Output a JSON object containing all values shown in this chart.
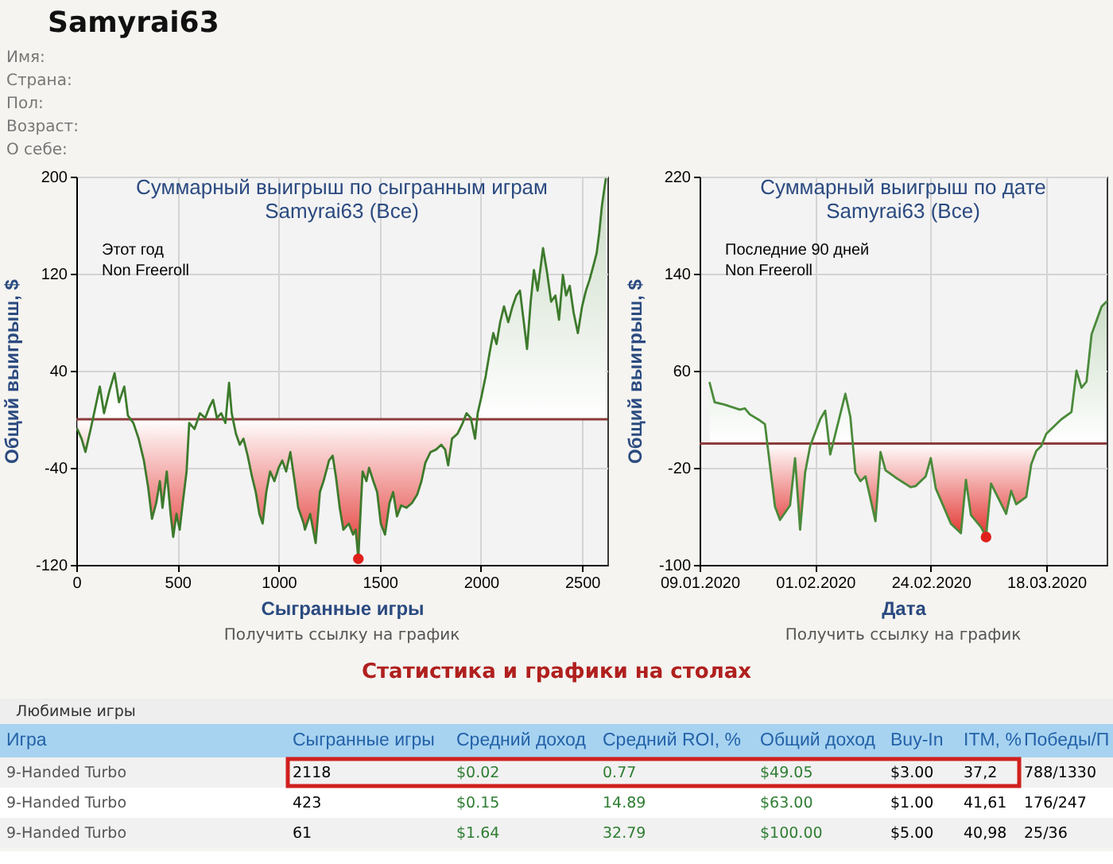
{
  "chart_data": [
    {
      "type": "other",
      "title": "Samyrai63",
      "annotations": [
        "Имя:",
        "Страна:",
        "Пол:",
        "Возраст:",
        "О себе:"
      ]
    },
    {
      "type": "area",
      "title": "Суммарный выигрыш по сыгранным играм",
      "subtitle": "Samyrai63 (Все)",
      "xlabel": "Сыгранные игры",
      "ylabel": "Общий выигрыш, $",
      "annotations": [
        "Этот год",
        "Non Freeroll",
        "Получить ссылку на график"
      ],
      "xlim": [
        0,
        2625
      ],
      "xticks": [
        0,
        500,
        1000,
        1500,
        2000,
        2500
      ],
      "ylim": [
        -120,
        200
      ],
      "yticks": [
        -120,
        -40,
        40,
        120,
        200
      ],
      "grid": true,
      "ref_lines": [
        {
          "axis": "y",
          "value": 0,
          "color": "#8c3b3b"
        }
      ],
      "series": [
        {
          "type": "area",
          "color": "#3d7a2c",
          "x": [
            5,
            26,
            45,
            71,
            97,
            116,
            137,
            163,
            189,
            211,
            237,
            255,
            282,
            308,
            334,
            355,
            374,
            395,
            413,
            426,
            447,
            466,
            479,
            495,
            511,
            526,
            545,
            558,
            584,
            611,
            637,
            658,
            676,
            695,
            716,
            737,
            755,
            768,
            789,
            808,
            826,
            847,
            868,
            887,
            905,
            921,
            939,
            958,
            979,
            1000,
            1018,
            1037,
            1058,
            1079,
            1097,
            1124,
            1130,
            1156,
            1183,
            1204,
            1222,
            1249,
            1267,
            1283,
            1302,
            1320,
            1347,
            1368,
            1381,
            1394,
            1407,
            1415,
            1434,
            1447,
            1468,
            1487,
            1505,
            1526,
            1548,
            1566,
            1585,
            1606,
            1632,
            1659,
            1685,
            1706,
            1725,
            1751,
            1778,
            1804,
            1823,
            1838,
            1857,
            1884,
            1910,
            1929,
            1950,
            1971,
            1984,
            2003,
            2024,
            2042,
            2061,
            2077,
            2095,
            2114,
            2135,
            2156,
            2175,
            2193,
            2209,
            2228,
            2246,
            2262,
            2280,
            2307,
            2325,
            2347,
            2368,
            2386,
            2405,
            2421,
            2439,
            2458,
            2479,
            2500,
            2519,
            2537,
            2558,
            2572,
            2585,
            2598,
            2617
          ],
          "values": [
            -8,
            -16,
            -27,
            -8,
            12,
            27,
            5,
            23,
            38,
            14,
            27,
            3,
            -3,
            -16,
            -34,
            -56,
            -82,
            -69,
            -51,
            -73,
            -43,
            -78,
            -97,
            -78,
            -91,
            -69,
            -43,
            -3,
            -8,
            5,
            1,
            10,
            16,
            1,
            5,
            -3,
            30,
            5,
            -12,
            -21,
            -16,
            -30,
            -47,
            -60,
            -78,
            -86,
            -60,
            -43,
            -51,
            -40,
            -34,
            -43,
            -27,
            -51,
            -73,
            -86,
            -91,
            -78,
            -102,
            -60,
            -51,
            -34,
            -30,
            -47,
            -73,
            -91,
            -86,
            -95,
            -91,
            -115,
            -69,
            -43,
            -51,
            -40,
            -51,
            -60,
            -86,
            -95,
            -69,
            -60,
            -80,
            -71,
            -73,
            -69,
            -62,
            -51,
            -36,
            -27,
            -25,
            -21,
            -25,
            -38,
            -16,
            -12,
            -3,
            5,
            1,
            -16,
            5,
            19,
            36,
            54,
            71,
            62,
            80,
            93,
            80,
            93,
            102,
            106,
            84,
            58,
            97,
            123,
            106,
            141,
            123,
            97,
            102,
            82,
            119,
            102,
            110,
            88,
            71,
            93,
            106,
            115,
            128,
            137,
            154,
            176,
            198
          ]
        },
        {
          "type": "scatter",
          "color": "#e0201c",
          "x": [
            1394
          ],
          "values": [
            -115
          ]
        }
      ]
    },
    {
      "type": "area",
      "title": "Суммарный выигрыш по дате",
      "subtitle": "Samyrai63 (Все)",
      "xlabel": "Дата",
      "ylabel": "Общий выигрыш, $",
      "annotations": [
        "Последние 90 дней",
        "Non Freeroll",
        "Получить ссылку на график"
      ],
      "xlim": [
        "2020-01-09",
        "2020-03-30"
      ],
      "xticks": [
        {
          "value": "2020-01-09",
          "label": "09.01.2020"
        },
        {
          "value": "2020-02-01",
          "label": "01.02.2020"
        },
        {
          "value": "2020-02-24",
          "label": "24.02.2020"
        },
        {
          "value": "2020-03-18",
          "label": "18.03.2020"
        }
      ],
      "ylim": [
        -100,
        220
      ],
      "yticks": [
        -100,
        -20,
        60,
        140,
        220
      ],
      "grid": true,
      "ref_lines": [
        {
          "axis": "y",
          "value": 0,
          "color": "#8c3b3b"
        }
      ],
      "series": [
        {
          "type": "area",
          "color": "#4a8a3a",
          "x": [
            "2020-01-11",
            "2020-01-12",
            "2020-01-14",
            "2020-01-17",
            "2020-01-18",
            "2020-01-19",
            "2020-01-21",
            "2020-01-22",
            "2020-01-24",
            "2020-01-25",
            "2020-01-27",
            "2020-01-28",
            "2020-01-29",
            "2020-01-30",
            "2020-01-31",
            "2020-02-02",
            "2020-02-03",
            "2020-02-04",
            "2020-02-07",
            "2020-02-08",
            "2020-02-09",
            "2020-02-10",
            "2020-02-11",
            "2020-02-13",
            "2020-02-14",
            "2020-02-15",
            "2020-02-17",
            "2020-02-20",
            "2020-02-21",
            "2020-02-23",
            "2020-02-24",
            "2020-02-25",
            "2020-02-28",
            "2020-03-01",
            "2020-03-02",
            "2020-03-03",
            "2020-03-05",
            "2020-03-06",
            "2020-03-07",
            "2020-03-10",
            "2020-03-11",
            "2020-03-12",
            "2020-03-14",
            "2020-03-15",
            "2020-03-16",
            "2020-03-17",
            "2020-03-18",
            "2020-03-20",
            "2020-03-21",
            "2020-03-23",
            "2020-03-24",
            "2020-03-25",
            "2020-03-26",
            "2020-03-27",
            "2020-03-29",
            "2020-03-30"
          ],
          "values": [
            50,
            34,
            32,
            28,
            29,
            24,
            19,
            16,
            -52,
            -63,
            -51,
            -12,
            -71,
            -24,
            -2,
            20,
            27,
            -9,
            41,
            22,
            -24,
            -31,
            -27,
            -64,
            -7,
            -22,
            -28,
            -36,
            -35,
            -27,
            -12,
            -37,
            -66,
            -74,
            -30,
            -59,
            -69,
            -77,
            -33,
            -58,
            -39,
            -50,
            -44,
            -17,
            -6,
            -2,
            8,
            16,
            20,
            26,
            60,
            46,
            51,
            90,
            113,
            117
          ]
        },
        {
          "type": "scatter",
          "color": "#e0201c",
          "x": [
            "2020-03-06"
          ],
          "values": [
            -77
          ]
        }
      ]
    },
    {
      "type": "other",
      "annotations": [
        "Статистика и графики на столах"
      ]
    },
    {
      "type": "other",
      "title": "Любимые игры",
      "categories": [
        "Игра",
        "Сыгранные игры",
        "Средний доход",
        "Средний ROI, %",
        "Общий доход",
        "Buy-In",
        "ITM, %",
        "Победы/П"
      ],
      "annotations": [
        "9-Handed Turbo",
        "2118",
        "$0.02",
        "0.77",
        "$49.05",
        "$3.00",
        "37,2",
        "788/1330",
        "9-Handed Turbo",
        "423",
        "$0.15",
        "14.89",
        "$63.00",
        "$1.00",
        "41,61",
        "176/247",
        "9-Handed Turbo",
        "61",
        "$1.64",
        "32.79",
        "$100.00",
        "$5.00",
        "40,98",
        "25/36"
      ]
    }
  ]
}
